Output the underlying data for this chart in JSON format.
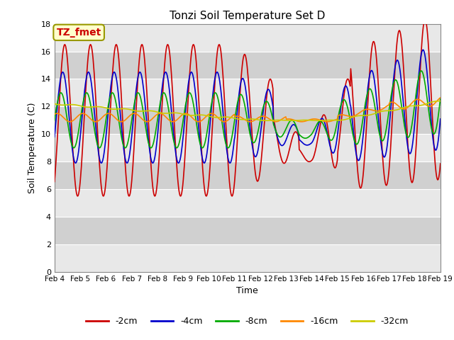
{
  "title": "Tonzi Soil Temperature Set D",
  "xlabel": "Time",
  "ylabel": "Soil Temperature (C)",
  "annotation": "TZ_fmet",
  "ylim": [
    0,
    18
  ],
  "yticks": [
    0,
    2,
    4,
    6,
    8,
    10,
    12,
    14,
    16,
    18
  ],
  "x_labels": [
    "Feb 4",
    "Feb 5",
    "Feb 6",
    "Feb 7",
    "Feb 8",
    "Feb 9",
    "Feb 10",
    "Feb 11",
    "Feb 12",
    "Feb 13",
    "Feb 14",
    "Feb 15",
    "Feb 16",
    "Feb 17",
    "Feb 18",
    "Feb 19"
  ],
  "colors": {
    "-2cm": "#cc0000",
    "-4cm": "#0000cc",
    "-8cm": "#00aa00",
    "-16cm": "#ff8800",
    "-32cm": "#cccc00"
  },
  "linewidth": 1.2,
  "background_color": "#ffffff",
  "plot_bg_light": "#e8e8e8",
  "plot_bg_dark": "#d0d0d0",
  "grid_color": "#ffffff",
  "legend_entries": [
    "-2cm",
    "-4cm",
    "-8cm",
    "-16cm",
    "-32cm"
  ],
  "figsize": [
    6.4,
    4.8
  ],
  "dpi": 100
}
